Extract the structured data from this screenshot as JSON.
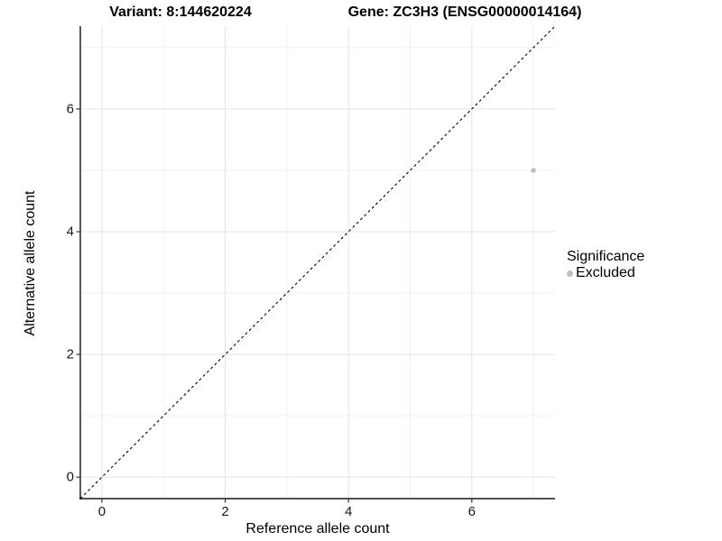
{
  "header": {
    "variant_title": "Variant: 8:144620224",
    "gene_title": "Gene: ZC3H3 (ENSG00000014164)"
  },
  "chart_data": {
    "type": "scatter",
    "title_left": "Variant: 8:144620224",
    "title_right": "Gene: ZC3H3 (ENSG00000014164)",
    "xlabel": "Reference allele count",
    "ylabel": "Alternative allele count",
    "xlim": [
      -0.35,
      7.35
    ],
    "ylim": [
      -0.35,
      7.35
    ],
    "x_ticks": [
      0,
      2,
      4,
      6
    ],
    "y_ticks": [
      0,
      2,
      4,
      6
    ],
    "minor_grid_values": [
      1,
      3,
      5,
      7
    ],
    "grid": "on",
    "legend_position": "right",
    "series": [
      {
        "name": "Excluded",
        "color": "#bebebe",
        "points": [
          {
            "x": 7,
            "y": 5
          }
        ]
      }
    ],
    "reference_line": {
      "type": "abline",
      "slope": 1,
      "intercept": 0,
      "style": "dashed",
      "color": "#000000"
    }
  },
  "axes": {
    "x_title": "Reference allele count",
    "y_title": "Alternative allele count"
  },
  "legend": {
    "title": "Significance",
    "items": [
      {
        "label": "Excluded",
        "color": "#bebebe"
      }
    ]
  },
  "colors": {
    "background": "#ffffff",
    "grid_major": "#e4e4e4",
    "grid_minor": "#f1f1f1",
    "axis_line": "#3a3a3a",
    "tick_mark": "#333333",
    "tick_text": "#1a1a1a",
    "point": "#bebebe"
  }
}
